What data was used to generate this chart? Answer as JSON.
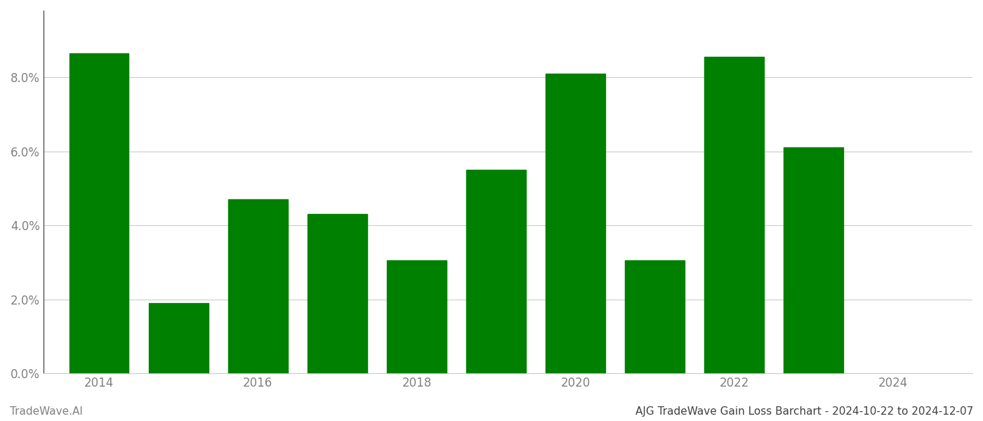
{
  "years": [
    2014,
    2015,
    2016,
    2017,
    2018,
    2019,
    2020,
    2021,
    2022,
    2023
  ],
  "values": [
    0.0865,
    0.019,
    0.047,
    0.043,
    0.0305,
    0.055,
    0.081,
    0.0305,
    0.0855,
    0.061
  ],
  "bar_color": "#008000",
  "background_color": "#ffffff",
  "title": "AJG TradeWave Gain Loss Barchart - 2024-10-22 to 2024-12-07",
  "watermark": "TradeWave.AI",
  "ytick_values": [
    0.0,
    0.02,
    0.04,
    0.06,
    0.08
  ],
  "ylim": [
    0,
    0.098
  ],
  "bar_width": 0.75,
  "grid_color": "#cccccc",
  "text_color": "#808080",
  "title_color": "#404040",
  "watermark_color": "#808080",
  "title_fontsize": 11,
  "watermark_fontsize": 11,
  "tick_fontsize": 12,
  "xticks": [
    2014,
    2016,
    2018,
    2020,
    2022,
    2024
  ],
  "xlim": [
    2013.3,
    2025.0
  ]
}
